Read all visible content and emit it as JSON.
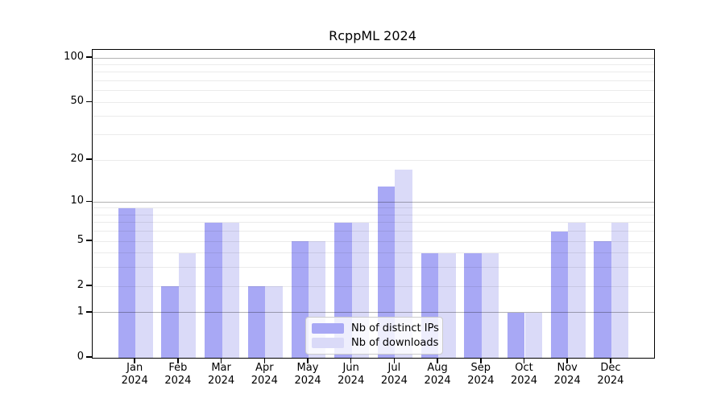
{
  "title": "RcppML 2024",
  "colors": {
    "bar_distinct_ips": "#a8a8f5",
    "bar_downloads": "#dadaf8",
    "axis": "#000000",
    "grid_major": "rgba(0,0,0,0.30)",
    "grid_minor": "rgba(0,0,0,0.08)",
    "legend_border": "#cccccc"
  },
  "chart_data": {
    "type": "bar",
    "title": "RcppML 2024",
    "xlabel": "",
    "ylabel": "",
    "scale": "log1p (symlog-like: ln(1+x))",
    "grid": "horizontal log gridlines, minor 2-9 and 20-90 faint, major 1/10/100 darker, drawn above bars",
    "legend_position": "lower center inside plot",
    "year": "2024",
    "categories": [
      "Jan 2024",
      "Feb 2024",
      "Mar 2024",
      "Apr 2024",
      "May 2024",
      "Jun 2024",
      "Jul 2024",
      "Aug 2024",
      "Sep 2024",
      "Oct 2024",
      "Nov 2024",
      "Dec 2024"
    ],
    "months": [
      "Jan",
      "Feb",
      "Mar",
      "Apr",
      "May",
      "Jun",
      "Jul",
      "Aug",
      "Sep",
      "Oct",
      "Nov",
      "Dec"
    ],
    "y_ticks": [
      0,
      1,
      2,
      5,
      10,
      20,
      50,
      100
    ],
    "ylim": [
      0,
      112
    ],
    "series": [
      {
        "name": "Nb of distinct IPs",
        "color": "#a8a8f5",
        "values": [
          9,
          2,
          7,
          2,
          5,
          7,
          13,
          4,
          4,
          1,
          6,
          5
        ]
      },
      {
        "name": "Nb of downloads",
        "color": "#dadaf8",
        "values": [
          9,
          4,
          7,
          2,
          5,
          7,
          17,
          4,
          4,
          1,
          7,
          7
        ]
      }
    ]
  }
}
